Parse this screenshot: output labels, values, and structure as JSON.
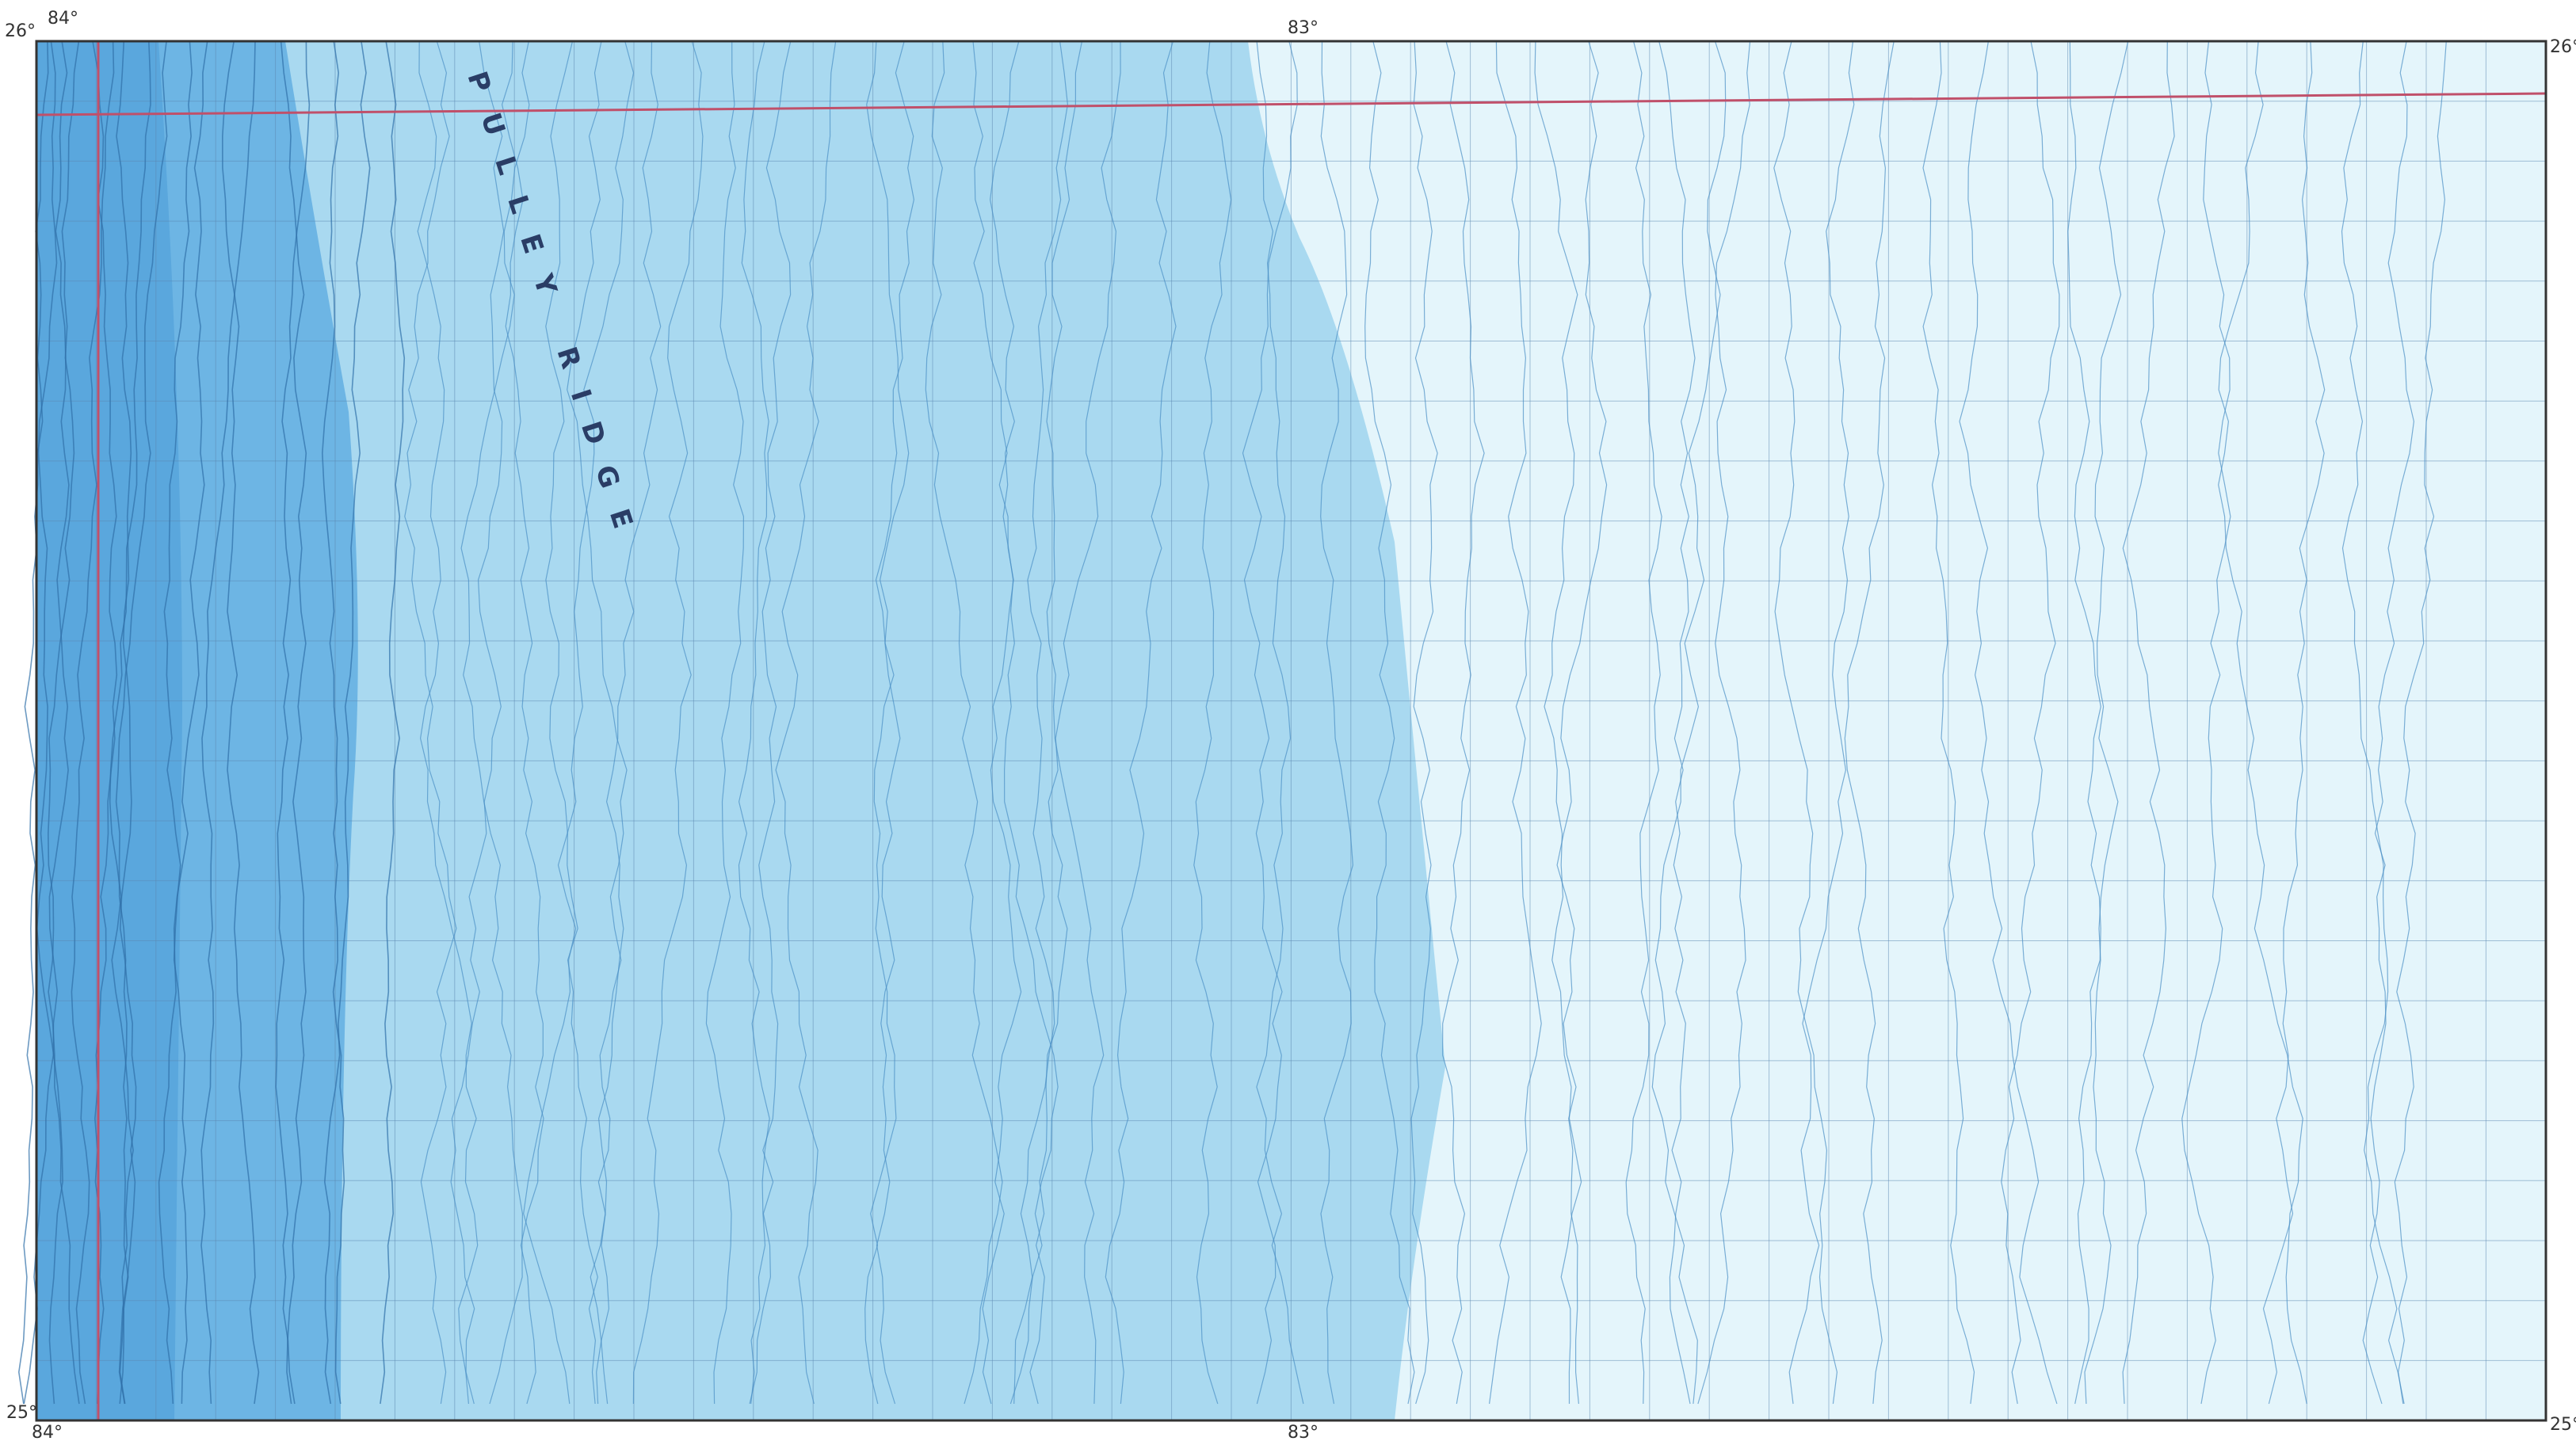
{
  "map": {
    "coords": {
      "west_lon": "84°",
      "mid_lon": "83°",
      "north_lat": "26°",
      "south_lat": "25°"
    },
    "feature_label": "PULLEY RIDGE"
  }
}
